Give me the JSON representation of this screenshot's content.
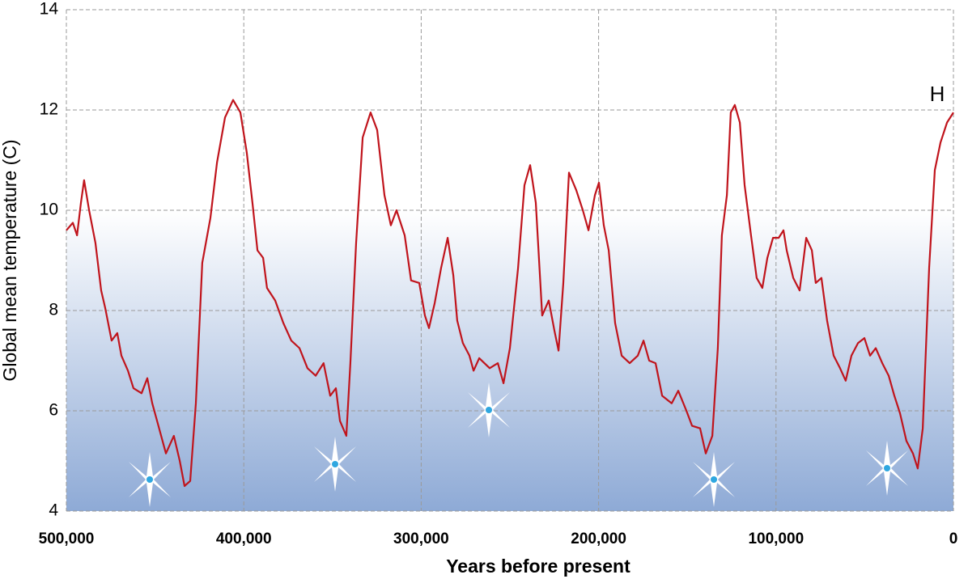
{
  "chart_data": {
    "type": "line",
    "x_label": "Years before present",
    "y_label": "Global mean temperature (C)",
    "annotations": [
      "H"
    ],
    "xlim": [
      500000,
      0
    ],
    "ylim": [
      4,
      14
    ],
    "xticks": [
      {
        "value": 500000,
        "label": "500,000"
      },
      {
        "value": 400000,
        "label": "400,000"
      },
      {
        "value": 300000,
        "label": "300,000"
      },
      {
        "value": 200000,
        "label": "200,000"
      },
      {
        "value": 100000,
        "label": "100,000"
      },
      0
    ],
    "yticks": [
      4,
      6,
      8,
      10,
      12,
      14
    ],
    "grid": true,
    "x": [
      500000,
      496350,
      494000,
      491800,
      490000,
      487200,
      483600,
      480400,
      478100,
      474500,
      471300,
      469000,
      465300,
      462200,
      457600,
      454400,
      451600,
      448500,
      443900,
      439400,
      436100,
      433400,
      430200,
      427000,
      423400,
      418800,
      415100,
      410600,
      406000,
      401900,
      398300,
      395100,
      392300,
      389100,
      386900,
      382300,
      377700,
      373200,
      368600,
      364100,
      359500,
      355000,
      351300,
      348100,
      345800,
      342200,
      339900,
      336700,
      333000,
      328500,
      324800,
      320700,
      317100,
      313900,
      309300,
      305700,
      301100,
      297900,
      295600,
      292400,
      288800,
      285100,
      281900,
      279700,
      276500,
      272800,
      270500,
      267300,
      261400,
      256800,
      253600,
      250000,
      245400,
      241800,
      238600,
      235400,
      231800,
      228100,
      224900,
      222600,
      219900,
      216700,
      212600,
      208900,
      205700,
      202100,
      199800,
      197100,
      194300,
      190700,
      187000,
      182500,
      177900,
      174700,
      171500,
      167900,
      164200,
      158800,
      155100,
      150500,
      147300,
      142800,
      139600,
      135900,
      132800,
      130500,
      127700,
      125500,
      123200,
      120400,
      117700,
      114100,
      110900,
      107700,
      104900,
      101700,
      98500,
      95800,
      94000,
      90300,
      86700,
      83000,
      79800,
      77600,
      74400,
      71200,
      67500,
      63900,
      60700,
      57500,
      53800,
      50200,
      47000,
      43800,
      40100,
      36500,
      33300,
      30100,
      26500,
      22800,
      20100,
      17300,
      13700,
      10500,
      7300,
      3600,
      0
    ],
    "series": [
      {
        "name": "Global mean temperature",
        "color": "#c0141c",
        "values": [
          9.6,
          9.75,
          9.5,
          10.15,
          10.6,
          10.0,
          9.35,
          8.4,
          8.05,
          7.4,
          7.55,
          7.1,
          6.8,
          6.45,
          6.35,
          6.65,
          6.15,
          5.75,
          5.15,
          5.5,
          5.0,
          4.5,
          4.6,
          6.15,
          8.95,
          9.85,
          10.95,
          11.85,
          12.2,
          11.95,
          11.15,
          10.15,
          9.2,
          9.05,
          8.45,
          8.2,
          7.75,
          7.4,
          7.25,
          6.85,
          6.7,
          6.95,
          6.3,
          6.45,
          5.8,
          5.5,
          6.95,
          9.35,
          11.45,
          11.95,
          11.6,
          10.3,
          9.7,
          10.0,
          9.5,
          8.6,
          8.55,
          7.9,
          7.65,
          8.15,
          8.85,
          9.45,
          8.7,
          7.8,
          7.35,
          7.1,
          6.8,
          7.05,
          6.85,
          6.95,
          6.55,
          7.25,
          8.85,
          10.5,
          10.9,
          10.15,
          7.9,
          8.2,
          7.6,
          7.2,
          8.55,
          10.75,
          10.4,
          10.0,
          9.6,
          10.3,
          10.55,
          9.7,
          9.2,
          7.75,
          7.1,
          6.95,
          7.1,
          7.4,
          7.0,
          6.95,
          6.3,
          6.15,
          6.4,
          6.0,
          5.7,
          5.65,
          5.15,
          5.5,
          7.25,
          9.5,
          10.3,
          11.95,
          12.1,
          11.75,
          10.5,
          9.5,
          8.65,
          8.45,
          9.05,
          9.45,
          9.45,
          9.6,
          9.2,
          8.65,
          8.4,
          9.45,
          9.2,
          8.55,
          8.65,
          7.8,
          7.1,
          6.85,
          6.6,
          7.1,
          7.35,
          7.45,
          7.1,
          7.25,
          6.95,
          6.7,
          6.3,
          5.95,
          5.4,
          5.15,
          4.85,
          5.65,
          8.85,
          10.8,
          11.35,
          11.75,
          11.95
        ]
      }
    ]
  }
}
